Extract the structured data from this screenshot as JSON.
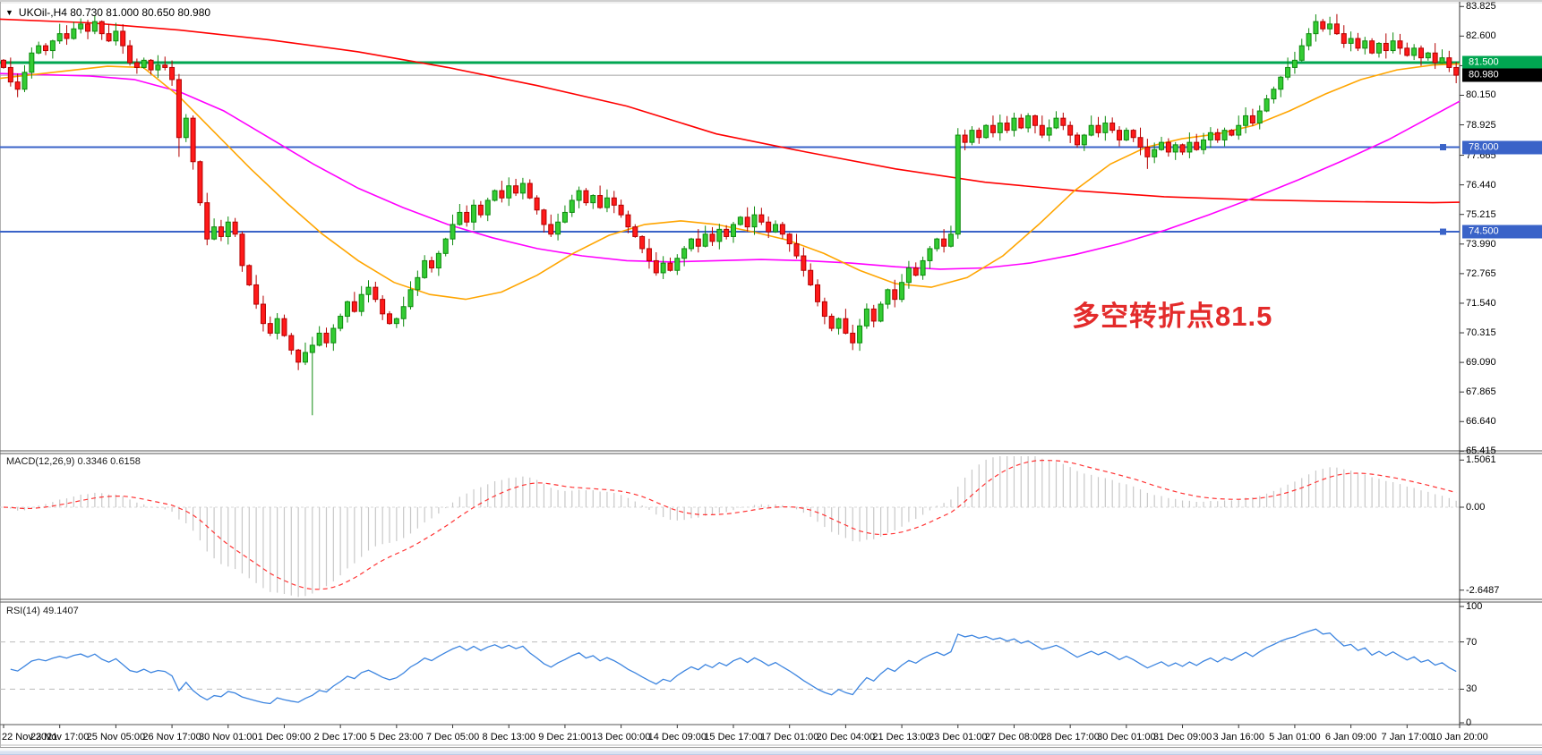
{
  "header": {
    "dropdown_glyph": "▼",
    "title": "UKOil-,H4  80.730 81.000 80.650 80.980"
  },
  "indicators": {
    "macd_label": "MACD(12,26,9) 0.3346 0.6158",
    "rsi_label": "RSI(14) 49.1407"
  },
  "annotation": {
    "text": "多空转折点81.5",
    "color": "#e32b2b"
  },
  "colors": {
    "bull_fill": "#33cc33",
    "bull_stroke": "#0e8a0e",
    "bear_fill": "#ff1a1a",
    "bear_stroke": "#b30000",
    "ma_red": "#ff0000",
    "ma_magenta": "#ff00ff",
    "ma_orange": "#ffa500",
    "level_green": "#00a651",
    "level_blue": "#3a63c8",
    "current_line": "#a0a0a0",
    "current_tag_bg": "#000000",
    "macd_histogram": "#c8c8c8",
    "macd_signal": "#ff3333",
    "rsi_line": "#3d85e0",
    "rsi_level_dash": "#bbbbbb"
  },
  "chart_data": {
    "type": "candlestick+indicators",
    "symbol": "UKOil-",
    "timeframe": "H4",
    "ohlc_display": {
      "open": "80.730",
      "high": "81.000",
      "low": "80.650",
      "close": "80.980"
    },
    "main": {
      "price_ticks": [
        "83.825",
        "82.600",
        "81.375",
        "80.150",
        "78.925",
        "77.665",
        "76.440",
        "75.215",
        "73.990",
        "72.765",
        "71.540",
        "70.315",
        "69.090",
        "67.865",
        "66.640",
        "65.415"
      ],
      "open_first": 81.6,
      "candles_close": [
        81.3,
        80.7,
        80.4,
        81.1,
        81.9,
        82.2,
        82.0,
        82.4,
        82.7,
        82.5,
        82.9,
        83.1,
        82.8,
        83.2,
        82.7,
        82.4,
        82.8,
        82.2,
        81.5,
        81.3,
        81.6,
        81.2,
        81.4,
        81.3,
        80.8,
        78.4,
        79.2,
        77.4,
        75.7,
        74.2,
        74.7,
        74.3,
        74.9,
        74.4,
        73.1,
        72.3,
        71.5,
        70.7,
        70.3,
        70.9,
        70.2,
        69.6,
        69.1,
        69.5,
        69.8,
        70.3,
        69.9,
        70.5,
        71.0,
        71.6,
        71.2,
        71.9,
        72.2,
        71.7,
        71.1,
        70.7,
        70.9,
        71.4,
        72.1,
        72.6,
        73.3,
        73.0,
        73.6,
        74.2,
        74.8,
        75.3,
        74.9,
        75.6,
        75.2,
        75.8,
        76.2,
        75.9,
        76.4,
        76.1,
        76.5,
        75.9,
        75.4,
        74.8,
        74.4,
        74.9,
        75.3,
        75.8,
        76.2,
        75.7,
        76.0,
        75.5,
        75.9,
        75.6,
        75.2,
        74.7,
        74.3,
        73.8,
        73.3,
        72.8,
        73.2,
        72.9,
        73.4,
        73.8,
        74.2,
        73.9,
        74.4,
        74.1,
        74.6,
        74.3,
        74.8,
        75.1,
        74.7,
        75.2,
        74.9,
        74.5,
        74.8,
        74.4,
        74.0,
        73.5,
        72.9,
        72.3,
        71.6,
        71.0,
        70.5,
        70.9,
        70.3,
        69.9,
        70.6,
        71.3,
        70.8,
        71.5,
        72.1,
        71.7,
        72.4,
        73.0,
        72.7,
        73.3,
        73.8,
        74.2,
        73.9,
        74.4,
        78.5,
        78.2,
        78.7,
        78.4,
        78.9,
        78.6,
        79.0,
        78.7,
        79.2,
        78.8,
        79.3,
        78.9,
        78.5,
        78.8,
        79.2,
        78.9,
        78.5,
        78.1,
        78.5,
        78.9,
        78.6,
        79.0,
        78.7,
        78.3,
        78.7,
        78.4,
        78.0,
        77.6,
        77.9,
        78.2,
        77.8,
        78.1,
        77.8,
        78.2,
        77.9,
        78.3,
        78.6,
        78.3,
        78.7,
        78.5,
        78.9,
        79.3,
        79.0,
        79.5,
        80.0,
        80.4,
        80.9,
        81.3,
        81.6,
        82.2,
        82.7,
        83.2,
        82.9,
        83.1,
        82.7,
        82.3,
        82.5,
        82.1,
        82.4,
        81.9,
        82.3,
        82.0,
        82.4,
        82.1,
        81.8,
        82.1,
        81.7,
        81.9,
        81.5,
        81.7,
        81.3,
        80.98
      ],
      "low_overrides": {
        "44": 66.9,
        "25": 77.6,
        "163": 77.1,
        "121": 69.6
      },
      "high_overrides": {
        "13": 83.45,
        "187": 83.5,
        "189": 83.4,
        "16": 83.1
      },
      "hlines": [
        {
          "price": 81.5,
          "color": "#00a651",
          "width": 3,
          "handle": false,
          "name": "level-line-81.500"
        },
        {
          "price": 80.98,
          "color": "#a0a0a0",
          "width": 1,
          "handle": false,
          "name": "current-price-line"
        },
        {
          "price": 78.0,
          "color": "#3a63c8",
          "width": 2,
          "handle": true,
          "name": "level-line-78.000"
        },
        {
          "price": 74.5,
          "color": "#3a63c8",
          "width": 2,
          "handle": true,
          "name": "level-line-74.500"
        }
      ],
      "price_tags": [
        {
          "label": "81.500",
          "price": 81.5,
          "bg": "#00a651",
          "name": "price-tag-81.500"
        },
        {
          "label": "80.980",
          "price": 80.98,
          "bg": "#000000",
          "name": "price-tag-current"
        },
        {
          "label": "78.000",
          "price": 78.0,
          "bg": "#3a63c8",
          "name": "price-tag-78.000"
        },
        {
          "label": "74.500",
          "price": 74.5,
          "bg": "#3a63c8",
          "name": "price-tag-74.500"
        }
      ],
      "ma_red": [
        [
          0,
          83.3
        ],
        [
          100,
          83.15
        ],
        [
          200,
          82.85
        ],
        [
          300,
          82.45
        ],
        [
          400,
          81.95
        ],
        [
          500,
          81.3
        ],
        [
          600,
          80.55
        ],
        [
          700,
          79.7
        ],
        [
          800,
          78.55
        ],
        [
          900,
          77.8
        ],
        [
          1000,
          77.1
        ],
        [
          1100,
          76.55
        ],
        [
          1200,
          76.2
        ],
        [
          1300,
          75.95
        ],
        [
          1400,
          75.82
        ],
        [
          1500,
          75.75
        ],
        [
          1600,
          75.7
        ],
        [
          1630,
          75.72
        ]
      ],
      "ma_magenta": [
        [
          0,
          81.05
        ],
        [
          100,
          80.95
        ],
        [
          150,
          80.8
        ],
        [
          200,
          80.3
        ],
        [
          250,
          79.5
        ],
        [
          300,
          78.4
        ],
        [
          350,
          77.3
        ],
        [
          400,
          76.3
        ],
        [
          450,
          75.5
        ],
        [
          500,
          74.8
        ],
        [
          550,
          74.25
        ],
        [
          600,
          73.8
        ],
        [
          650,
          73.5
        ],
        [
          700,
          73.3
        ],
        [
          750,
          73.25
        ],
        [
          800,
          73.3
        ],
        [
          850,
          73.35
        ],
        [
          900,
          73.3
        ],
        [
          950,
          73.2
        ],
        [
          1000,
          73.05
        ],
        [
          1050,
          72.95
        ],
        [
          1100,
          73.0
        ],
        [
          1150,
          73.2
        ],
        [
          1200,
          73.55
        ],
        [
          1250,
          74.0
        ],
        [
          1300,
          74.55
        ],
        [
          1350,
          75.2
        ],
        [
          1400,
          75.9
        ],
        [
          1450,
          76.65
        ],
        [
          1500,
          77.45
        ],
        [
          1550,
          78.3
        ],
        [
          1600,
          79.3
        ],
        [
          1630,
          79.9
        ]
      ],
      "ma_orange": [
        [
          0,
          80.85
        ],
        [
          60,
          81.1
        ],
        [
          120,
          81.35
        ],
        [
          160,
          81.3
        ],
        [
          200,
          80.1
        ],
        [
          240,
          78.6
        ],
        [
          280,
          77.1
        ],
        [
          320,
          75.7
        ],
        [
          360,
          74.4
        ],
        [
          400,
          73.3
        ],
        [
          440,
          72.4
        ],
        [
          480,
          71.9
        ],
        [
          520,
          71.7
        ],
        [
          560,
          72.0
        ],
        [
          600,
          72.7
        ],
        [
          640,
          73.6
        ],
        [
          680,
          74.35
        ],
        [
          720,
          74.8
        ],
        [
          760,
          74.95
        ],
        [
          800,
          74.8
        ],
        [
          840,
          74.5
        ],
        [
          880,
          74.15
        ],
        [
          920,
          73.6
        ],
        [
          960,
          72.9
        ],
        [
          1000,
          72.35
        ],
        [
          1040,
          72.2
        ],
        [
          1080,
          72.6
        ],
        [
          1120,
          73.5
        ],
        [
          1160,
          74.8
        ],
        [
          1200,
          76.2
        ],
        [
          1240,
          77.3
        ],
        [
          1280,
          78.0
        ],
        [
          1320,
          78.35
        ],
        [
          1360,
          78.55
        ],
        [
          1400,
          78.9
        ],
        [
          1440,
          79.5
        ],
        [
          1480,
          80.2
        ],
        [
          1520,
          80.8
        ],
        [
          1560,
          81.2
        ],
        [
          1600,
          81.4
        ],
        [
          1630,
          81.45
        ]
      ]
    },
    "macd": {
      "params": [
        12,
        26,
        9
      ],
      "value_main": "0.3346",
      "value_signal": "0.6158",
      "axis_ticks": [
        "1.5061",
        "0.00",
        "-2.6487"
      ],
      "axis_values": [
        1.5061,
        0,
        -2.6487
      ]
    },
    "rsi": {
      "period": 14,
      "value": "49.1407",
      "axis_ticks": [
        "100",
        "70",
        "30",
        "0"
      ],
      "axis_values": [
        100,
        70,
        30,
        0
      ],
      "levels": [
        70,
        30
      ]
    },
    "time_labels": [
      "22 Nov 2021",
      "23 Nov 17:00",
      "25 Nov 05:00",
      "26 Nov 17:00",
      "30 Nov 01:00",
      "1 Dec 09:00",
      "2 Dec 17:00",
      "5 Dec 23:00",
      "7 Dec 05:00",
      "8 Dec 13:00",
      "9 Dec 21:00",
      "13 Dec 00:00",
      "14 Dec 09:00",
      "15 Dec 17:00",
      "17 Dec 01:00",
      "20 Dec 04:00",
      "21 Dec 13:00",
      "23 Dec 01:00",
      "27 Dec 08:00",
      "28 Dec 17:00",
      "30 Dec 01:00",
      "31 Dec 09:00",
      "3 Jan 16:00",
      "5 Jan 01:00",
      "6 Jan 09:00",
      "7 Jan 17:00",
      "10 Jan 20:00"
    ]
  }
}
